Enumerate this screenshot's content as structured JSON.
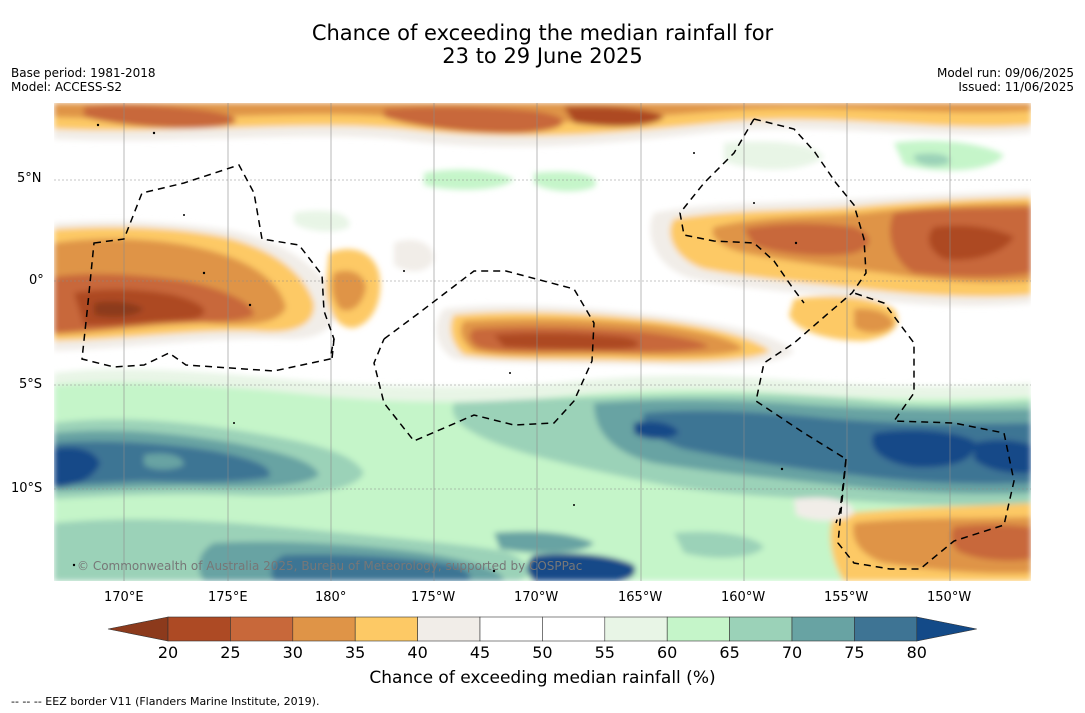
{
  "header": {
    "title_line1": "Chance of exceeding the median rainfall for",
    "title_line2": "23 to 29 June 2025",
    "base_period": "Base period: 1981-2018",
    "model": "Model: ACCESS-S2",
    "model_run": "Model run: 09/06/2025",
    "issued": "Issued: 11/06/2025"
  },
  "map": {
    "copyright": "© Commonwealth of Australia 2025, Bureau of Meteorology, supported by COSPPac",
    "lat_labels": [
      "5°N",
      "0°",
      "5°S",
      "10°S"
    ],
    "lon_labels": [
      "170°E",
      "175°E",
      "180°",
      "175°W",
      "170°W",
      "165°W",
      "160°W",
      "155°W",
      "150°W"
    ]
  },
  "colorbar": {
    "ticks": [
      "20",
      "25",
      "30",
      "35",
      "40",
      "45",
      "50",
      "55",
      "60",
      "65",
      "70",
      "75",
      "80"
    ],
    "colors": [
      "#8c3a1c",
      "#ad4a24",
      "#c8683a",
      "#df9447",
      "#fdc965",
      "#f1ede8",
      "#ffffff",
      "#ffffff",
      "#e8f5e6",
      "#c5f5c9",
      "#9bd2b8",
      "#68a3a3",
      "#3e7494",
      "#134a88"
    ],
    "label": "Chance of exceeding median rainfall (%)"
  },
  "footer": {
    "legend": "--  --  -- EEZ border V11 (Flanders Marine Institute, 2019)."
  }
}
